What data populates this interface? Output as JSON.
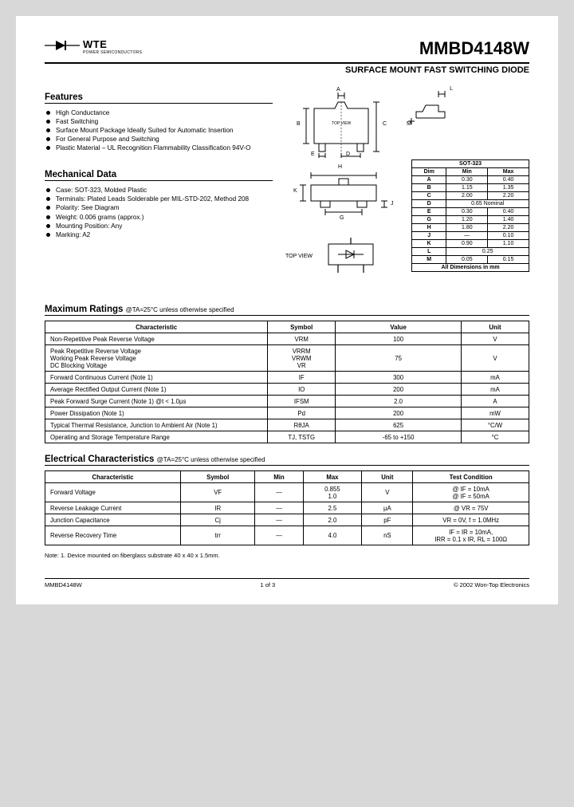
{
  "header": {
    "logo_text": "WTE",
    "logo_sub": "POWER SEMICONDUCTORS",
    "part_number": "MMBD4148W",
    "subtitle": "SURFACE MOUNT FAST SWITCHING DIODE"
  },
  "features": {
    "heading": "Features",
    "items": [
      "High Conductance",
      "Fast Switching",
      "Surface Mount Package Ideally Suited for Automatic Insertion",
      "For General Purpose and Switching",
      "Plastic Material – UL Recognition Flammability Classification 94V-O"
    ]
  },
  "mechanical": {
    "heading": "Mechanical Data",
    "items": [
      "Case: SOT-323, Molded Plastic",
      "Terminals: Plated Leads Solderable per MIL-STD-202, Method 208",
      "Polarity: See Diagram",
      "Weight: 0.006 grams (approx.)",
      "Mounting Position: Any",
      "Marking: A2"
    ]
  },
  "dim_table": {
    "title": "SOT-323",
    "headers": [
      "Dim",
      "Min",
      "Max"
    ],
    "rows": [
      [
        "A",
        "0.30",
        "0.40"
      ],
      [
        "B",
        "1.15",
        "1.35"
      ],
      [
        "C",
        "2.00",
        "2.20"
      ],
      [
        "D",
        "0.65 Nominal",
        ""
      ],
      [
        "E",
        "0.30",
        "0.40"
      ],
      [
        "G",
        "1.20",
        "1.40"
      ],
      [
        "H",
        "1.80",
        "2.20"
      ],
      [
        "J",
        "—",
        "0.10"
      ],
      [
        "K",
        "0.90",
        "1.10"
      ],
      [
        "L",
        "0.25",
        ""
      ],
      [
        "M",
        "0.05",
        "0.15"
      ]
    ],
    "footer_note": "All Dimensions in mm"
  },
  "top_view_label": "TOP VIEW",
  "pkg_inner_label": "TOP VIEW",
  "dim_labels": {
    "A": "A",
    "B": "B",
    "C": "C",
    "D": "D",
    "E": "E",
    "G": "G",
    "H": "H",
    "J": "J",
    "K": "K",
    "L": "L",
    "M": "M"
  },
  "max_ratings": {
    "heading": "Maximum Ratings",
    "condition": "@TA=25°C unless otherwise specified",
    "headers": [
      "Characteristic",
      "Symbol",
      "Value",
      "Unit"
    ],
    "rows": [
      {
        "c": "Non-Repetitive Peak Reverse Voltage",
        "s": "VRM",
        "v": "100",
        "u": "V"
      },
      {
        "c": "Peak Repetitive Reverse Voltage\nWorking Peak Reverse Voltage\nDC Blocking Voltage",
        "s": "VRRM\nVRWM\nVR",
        "v": "75",
        "u": "V"
      },
      {
        "c": "Forward Continuous Current (Note 1)",
        "s": "IF",
        "v": "300",
        "u": "mA"
      },
      {
        "c": "Average Rectified Output Current (Note 1)",
        "s": "IO",
        "v": "200",
        "u": "mA"
      },
      {
        "c": "Peak Forward Surge Current (Note 1)            @t < 1.0µs",
        "s": "IFSM",
        "v": "2.0",
        "u": "A"
      },
      {
        "c": "Power Dissipation (Note 1)",
        "s": "Pd",
        "v": "200",
        "u": "mW"
      },
      {
        "c": "Typical Thermal Resistance, Junction to Ambient Air (Note 1)",
        "s": "RθJA",
        "v": "625",
        "u": "°C/W"
      },
      {
        "c": "Operating and Storage Temperature Range",
        "s": "TJ, TSTG",
        "v": "-65 to +150",
        "u": "°C"
      }
    ]
  },
  "elec": {
    "heading": "Electrical Characteristics",
    "condition": "@TA=25°C unless otherwise specified",
    "headers": [
      "Characteristic",
      "Symbol",
      "Min",
      "Max",
      "Unit",
      "Test Condition"
    ],
    "rows": [
      {
        "c": "Forward Voltage",
        "s": "VF",
        "min": "—",
        "max": "0.855\n1.0",
        "u": "V",
        "t": "@ IF = 10mA\n@ IF = 50mA"
      },
      {
        "c": "Reverse Leakage Current",
        "s": "IR",
        "min": "—",
        "max": "2.5",
        "u": "µA",
        "t": "@ VR = 75V"
      },
      {
        "c": "Junction Capacitance",
        "s": "Cj",
        "min": "—",
        "max": "2.0",
        "u": "pF",
        "t": "VR = 0V, f = 1.0MHz"
      },
      {
        "c": "Reverse Recovery Time",
        "s": "trr",
        "min": "—",
        "max": "4.0",
        "u": "nS",
        "t": "IF = IR = 10mA,\nIRR = 0.1 x IR, RL = 100Ω"
      }
    ]
  },
  "note": "Note:  1. Device mounted on fiberglass substrate 40 x 40 x 1.5mm.",
  "footer": {
    "left": "MMBD4148W",
    "center": "1 of 3",
    "right": "© 2002 Won-Top Electronics"
  }
}
